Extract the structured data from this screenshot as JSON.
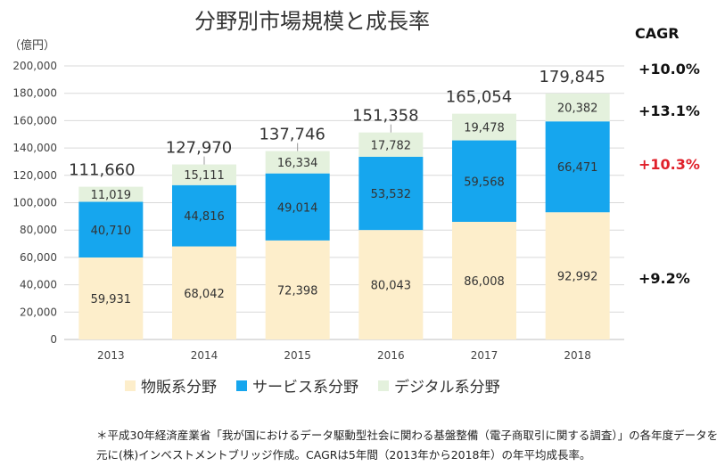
{
  "title": "分野別市場規模と成長率",
  "unit_label": "（億円）",
  "cagr_header": "CAGR",
  "cagr": {
    "total": "+10.0%",
    "digital": "+13.1%",
    "service": "+10.3%",
    "goods": "+9.2%"
  },
  "colors": {
    "goods": "#fdeecb",
    "service": "#16a6ee",
    "digital": "#e4f1dd",
    "cagr_highlight": "#e0202a"
  },
  "legend": [
    "物販系分野",
    "サービス系分野",
    "デジタル系分野"
  ],
  "footnote": "＊平成30年経済産業省「我が国におけるデータ駆動型社会に関わる基盤整備（電子商取引に関する調査）」の各年度データを元に(株)インベストメントブリッジ作成。CAGRは5年間（2013年から2018年）の年平均成長率。",
  "chart_data": {
    "type": "bar",
    "stacked": true,
    "title": "分野別市場規模と成長率",
    "ylabel": "（億円）",
    "categories": [
      "2013",
      "2014",
      "2015",
      "2016",
      "2017",
      "2018"
    ],
    "series": [
      {
        "name": "物販系分野",
        "values": [
          59931,
          68042,
          72398,
          80043,
          86008,
          92992
        ],
        "labels": [
          "59,931",
          "68,042",
          "72,398",
          "80,043",
          "86,008",
          "92,992"
        ]
      },
      {
        "name": "サービス系分野",
        "values": [
          40710,
          44816,
          49014,
          53532,
          59568,
          66471
        ],
        "labels": [
          "40,710",
          "44,816",
          "49,014",
          "53,532",
          "59,568",
          "66,471"
        ]
      },
      {
        "name": "デジタル系分野",
        "values": [
          11019,
          15111,
          16334,
          17782,
          19478,
          20382
        ],
        "labels": [
          "11,019",
          "15,111",
          "16,334",
          "17,782",
          "19,478",
          "20,382"
        ]
      }
    ],
    "totals": [
      "111,660",
      "127,970",
      "137,746",
      "151,358",
      "165,054",
      "179,845"
    ],
    "ylim": [
      0,
      200000
    ],
    "yticks": [
      "0",
      "20,000",
      "40,000",
      "60,000",
      "80,000",
      "100,000",
      "120,000",
      "140,000",
      "160,000",
      "180,000",
      "200,000"
    ],
    "grid": true,
    "legend_position": "bottom"
  }
}
